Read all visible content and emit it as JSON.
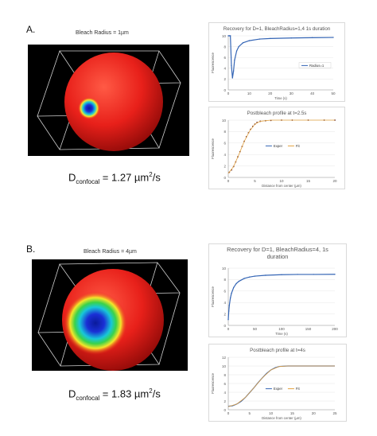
{
  "panels": [
    {
      "label": "A.",
      "render_title": "Bleach Radius = 1µm",
      "d_prefix": "D",
      "d_sub": "confocal",
      "d_value": " = 1.27 µm",
      "d_exp": "2",
      "d_unit": "/s"
    },
    {
      "label": "B.",
      "render_title": "Bleach Radius = 4µm",
      "d_prefix": "D",
      "d_sub": "confocal",
      "d_value": " = 1.83 µm",
      "d_exp": "2",
      "d_unit": "/s"
    }
  ],
  "colors": {
    "sphere": "#e8201a",
    "spot_outer": "#f5e62a",
    "spot_inner": "#1a2fd6",
    "series": "#3465b5",
    "fit": "#e2a03f"
  },
  "chart_data": [
    {
      "type": "line",
      "title": "Recovery for D=1, BleachRadius=1,4 1s duration",
      "xlabel": "Time (s)",
      "ylabel": "Fluorescence",
      "xlim": [
        0,
        50
      ],
      "ylim": [
        0,
        10
      ],
      "x_ticks": [
        "0",
        "10",
        "20",
        "30",
        "40",
        "50"
      ],
      "y_ticks": [
        "0",
        "2",
        "4",
        "6",
        "8",
        "10"
      ],
      "legend": [
        "Radius=1"
      ],
      "series": [
        {
          "name": "Radius=1",
          "x": [
            0,
            0.5,
            1,
            1.5,
            2,
            2.5,
            3,
            4,
            5,
            7,
            10,
            15,
            20,
            30,
            40,
            50,
            55
          ],
          "y": [
            10,
            10,
            10,
            4.5,
            2.2,
            3.5,
            5.5,
            7.2,
            8.0,
            8.7,
            9.1,
            9.4,
            9.5,
            9.6,
            9.65,
            9.7,
            9.7
          ]
        }
      ]
    },
    {
      "type": "scatter",
      "title": "Postbleach profile at t=2.5s",
      "xlabel": "Distance from center (µm)",
      "ylabel": "Fluorescence",
      "xlim": [
        0,
        20
      ],
      "ylim": [
        0,
        10
      ],
      "x_ticks": [
        "0",
        "5",
        "10",
        "15",
        "20"
      ],
      "y_ticks": [
        "0",
        "2",
        "4",
        "6",
        "8",
        "10"
      ],
      "legend": [
        "Exper",
        "Fit"
      ],
      "series": [
        {
          "name": "Exper",
          "x": [
            0.2,
            0.6,
            1.0,
            1.4,
            1.8,
            2.2,
            2.6,
            3.0,
            3.4,
            3.8,
            4.2,
            4.6,
            5.0,
            5.4,
            6,
            7,
            8,
            10,
            12,
            15,
            18,
            20
          ],
          "y": [
            0.9,
            1.3,
            1.9,
            2.7,
            3.6,
            4.5,
            5.4,
            6.3,
            7.1,
            7.8,
            8.4,
            8.9,
            9.3,
            9.6,
            9.8,
            9.9,
            9.95,
            10,
            10,
            10,
            10,
            10
          ]
        },
        {
          "name": "Fit",
          "x": [
            0,
            1,
            2,
            3,
            4,
            5,
            6,
            8,
            10,
            15,
            20
          ],
          "y": [
            0.7,
            1.9,
            4.0,
            6.3,
            8.1,
            9.3,
            9.8,
            10,
            10,
            10,
            10
          ]
        }
      ]
    },
    {
      "type": "line",
      "title": "Recovery for D=1, BleachRadius=4, 1s duration",
      "xlabel": "Time (s)",
      "ylabel": "Fluorescence",
      "xlim": [
        0,
        200
      ],
      "ylim": [
        0,
        10
      ],
      "x_ticks": [
        "0",
        "50",
        "100",
        "150",
        "200"
      ],
      "y_ticks": [
        "0",
        "2",
        "4",
        "6",
        "8",
        "10"
      ],
      "legend": [],
      "series": [
        {
          "name": "",
          "x": [
            0,
            1,
            2,
            4,
            6,
            10,
            15,
            20,
            30,
            40,
            50,
            70,
            100,
            130,
            160,
            200
          ],
          "y": [
            1.0,
            2.5,
            3.5,
            4.8,
            5.6,
            6.6,
            7.3,
            7.7,
            8.2,
            8.45,
            8.6,
            8.75,
            8.85,
            8.9,
            8.9,
            8.92
          ]
        }
      ]
    },
    {
      "type": "line",
      "title": "Postbleach profile at t=4s",
      "xlabel": "Distance from center (µm)",
      "ylabel": "Fluorescence",
      "xlim": [
        0,
        25
      ],
      "ylim": [
        0,
        12
      ],
      "x_ticks": [
        "0",
        "5",
        "10",
        "15",
        "20",
        "25"
      ],
      "y_ticks": [
        "0",
        "2",
        "4",
        "6",
        "8",
        "10",
        "12"
      ],
      "legend": [
        "Exper",
        "Fit"
      ],
      "series": [
        {
          "name": "Exper",
          "x": [
            0,
            1,
            2,
            3,
            4,
            5,
            6,
            7,
            8,
            9,
            10,
            11,
            12,
            14,
            16,
            18,
            20,
            22,
            24,
            25
          ],
          "y": [
            0.8,
            0.9,
            1.3,
            1.9,
            2.8,
            3.9,
            5.0,
            6.2,
            7.3,
            8.3,
            9.1,
            9.6,
            9.9,
            10,
            10,
            10,
            10,
            10,
            10,
            10
          ]
        },
        {
          "name": "Fit",
          "x": [
            0,
            2,
            4,
            6,
            8,
            10,
            12,
            14,
            16,
            20,
            25
          ],
          "y": [
            0.7,
            1.3,
            2.8,
            5.0,
            7.3,
            9.1,
            9.9,
            10,
            10,
            10,
            10
          ]
        }
      ]
    }
  ]
}
